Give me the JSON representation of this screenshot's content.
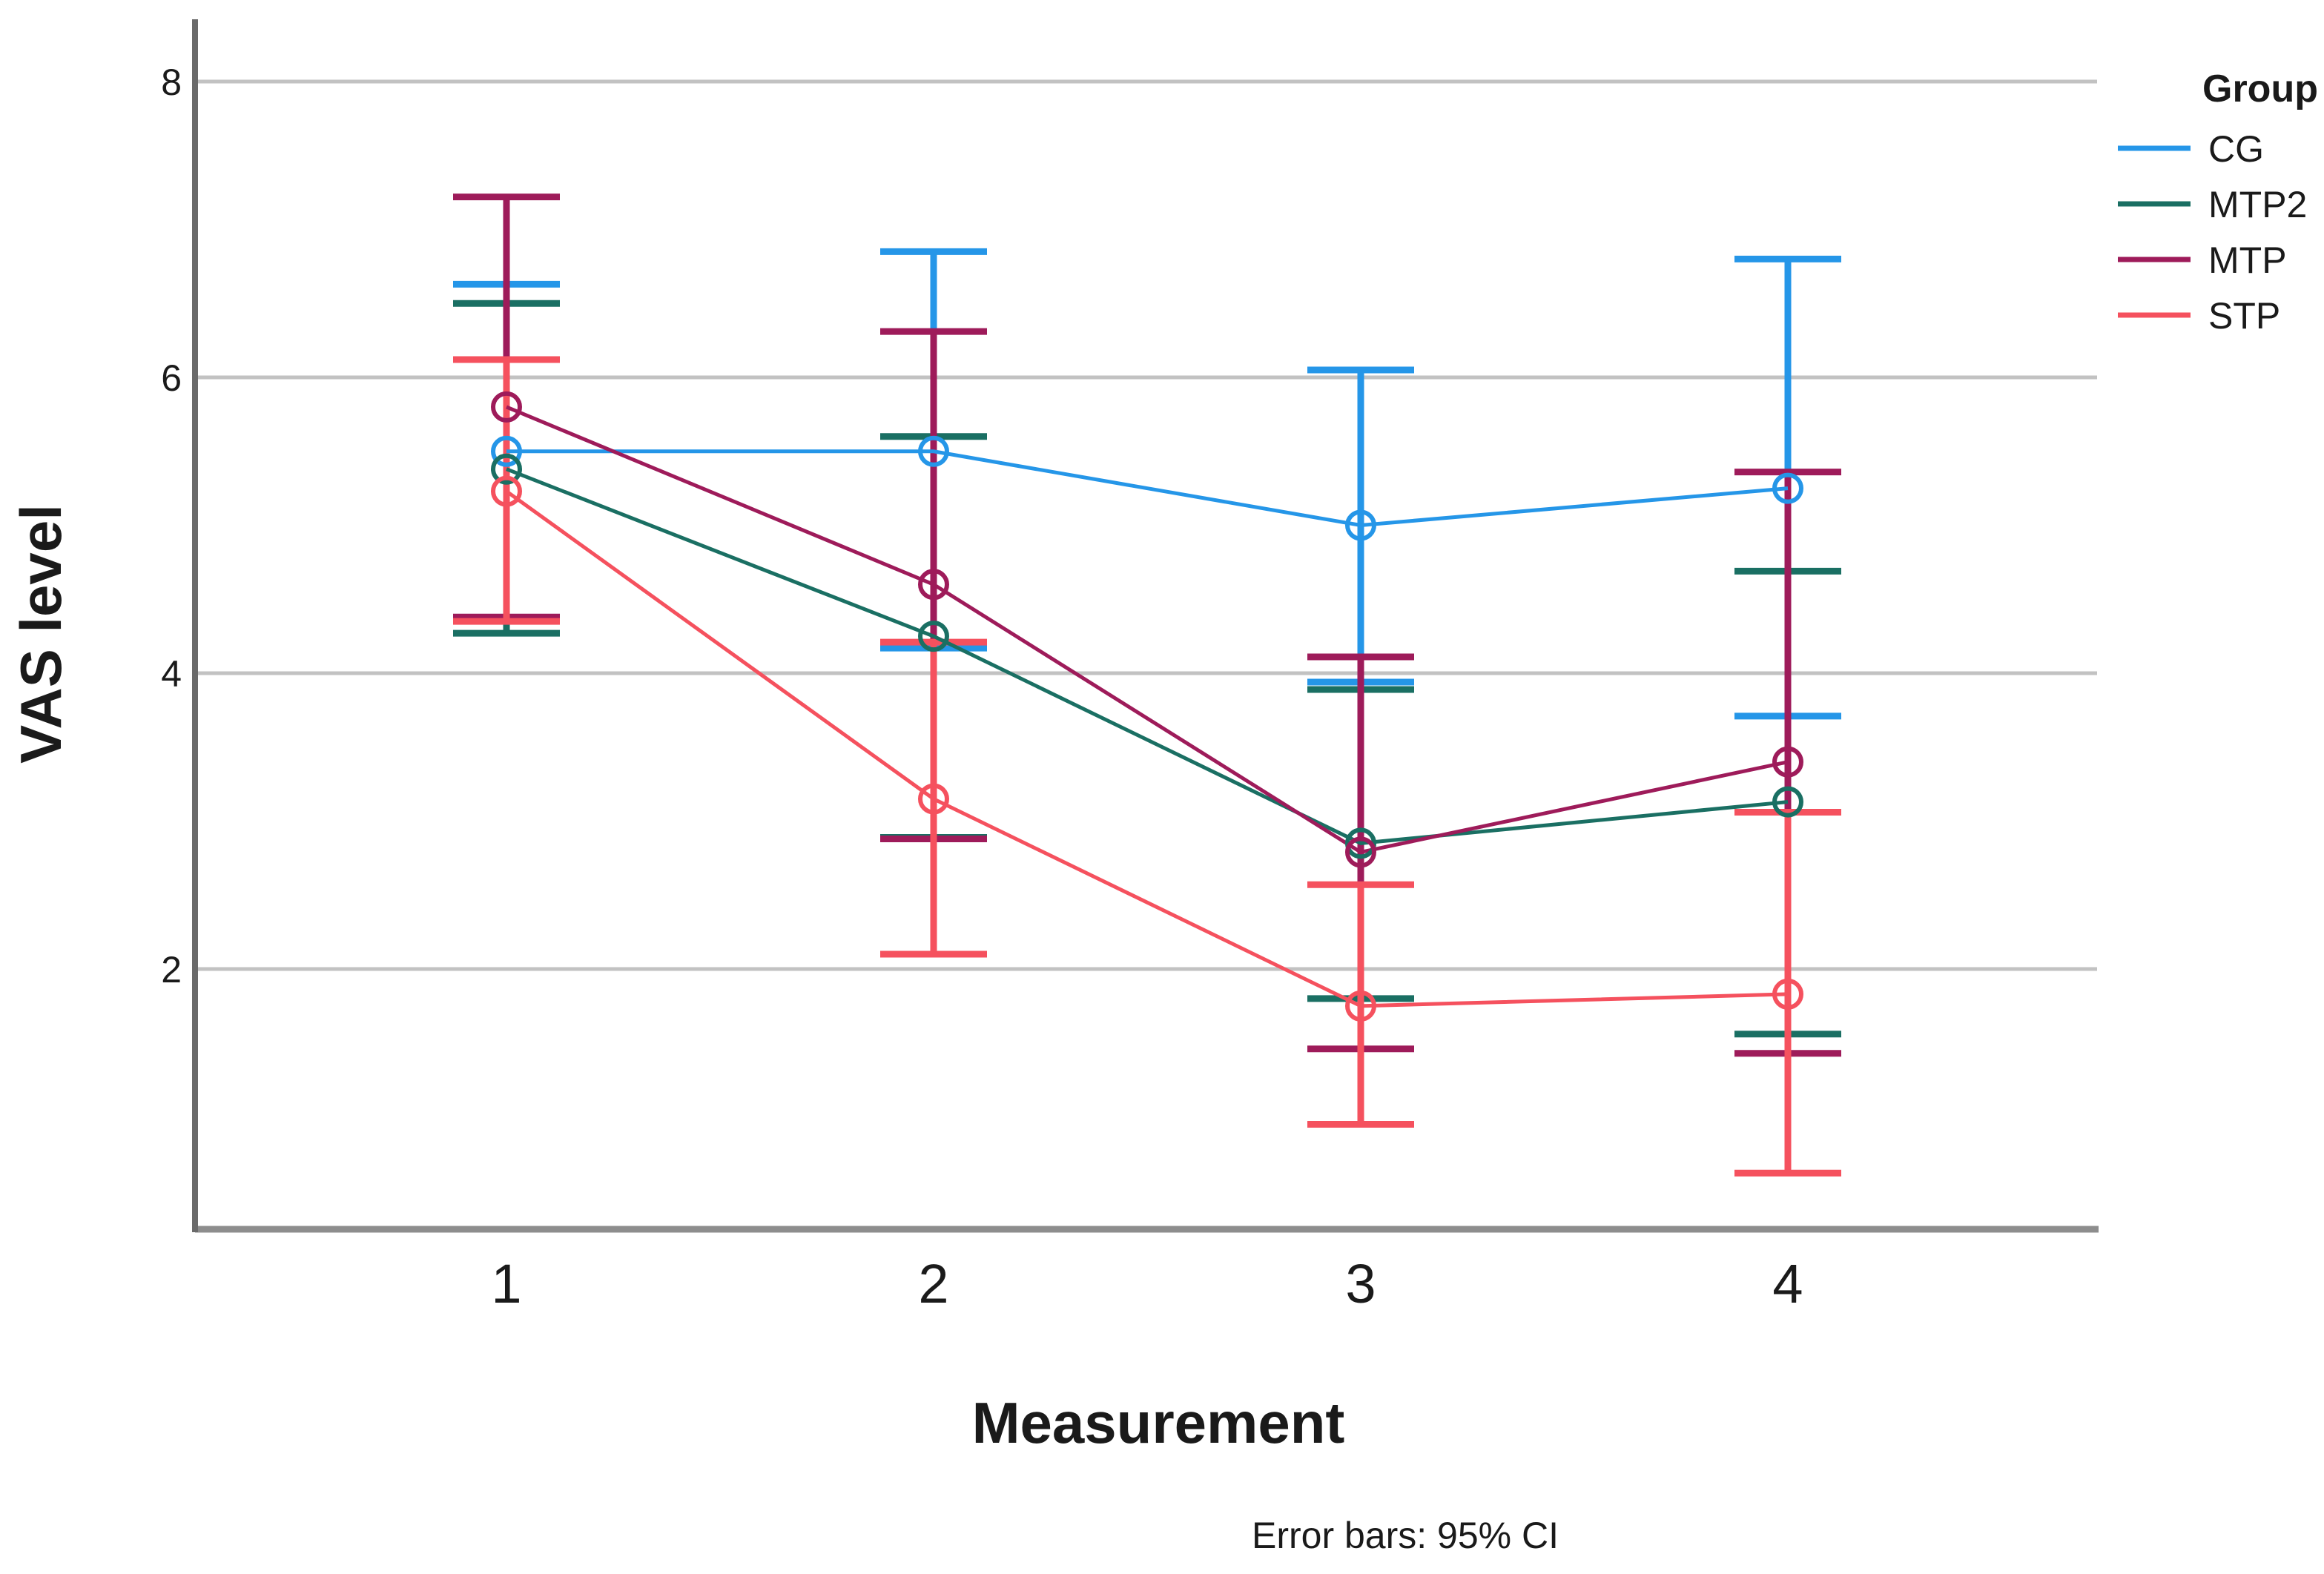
{
  "chart_data": {
    "type": "line",
    "title": "",
    "xlabel": "Measurement",
    "ylabel": "VAS level",
    "footnote": "Error bars: 95% CI",
    "legend_title": "Group",
    "legend_position": "top-right",
    "grid": "horizontal",
    "x_categories": [
      "1",
      "2",
      "3",
      "4"
    ],
    "y_ticks": [
      2,
      4,
      6,
      8
    ],
    "ylim": [
      0.2,
      8.45
    ],
    "error_bars": "95% CI",
    "series": [
      {
        "name": "CG",
        "color": "#2596e8",
        "means": [
          5.5,
          5.5,
          5.0,
          5.25
        ],
        "ci_low": [
          4.37,
          4.17,
          3.94,
          3.71
        ],
        "ci_high": [
          6.63,
          6.85,
          6.05,
          6.8
        ]
      },
      {
        "name": "MTP2",
        "color": "#1a6f63",
        "means": [
          5.38,
          4.25,
          2.85,
          3.13
        ],
        "ci_low": [
          4.27,
          2.89,
          1.8,
          1.56
        ],
        "ci_high": [
          6.5,
          5.6,
          3.89,
          4.69
        ]
      },
      {
        "name": "MTP",
        "color": "#9e1b5a",
        "means": [
          5.8,
          4.6,
          2.79,
          3.4
        ],
        "ci_low": [
          4.38,
          2.88,
          1.46,
          1.43
        ],
        "ci_high": [
          7.22,
          6.31,
          4.11,
          5.36
        ]
      },
      {
        "name": "STP",
        "color": "#f5515e",
        "means": [
          5.23,
          3.15,
          1.75,
          1.83
        ],
        "ci_low": [
          4.35,
          2.1,
          0.95,
          0.62
        ],
        "ci_high": [
          6.12,
          4.21,
          2.57,
          3.06
        ]
      }
    ],
    "axis_colors": {
      "grid": "#c2c2c2",
      "x_axis": "#8d8d8d",
      "y_axis": "#6a6a6a"
    }
  }
}
